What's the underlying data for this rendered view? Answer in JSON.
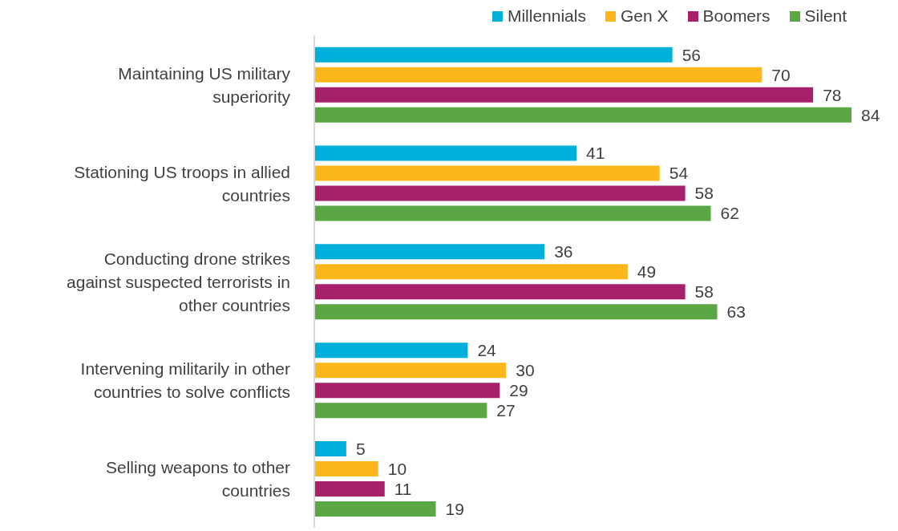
{
  "chart_data": {
    "type": "bar",
    "orientation": "horizontal",
    "data_labels": true,
    "legend": "top",
    "grid": false,
    "categories": [
      "Maintaining US military superiority",
      "Stationing US troops in allied countries",
      "Conducting drone strikes against suspected terrorists in other countries",
      "Intervening militarily in other countries to solve conflicts",
      "Selling weapons to other countries"
    ],
    "series": [
      {
        "name": "Millennials",
        "color": "#00b0db",
        "values": [
          56,
          41,
          36,
          24,
          5
        ]
      },
      {
        "name": "Gen X",
        "color": "#fdb71a",
        "values": [
          70,
          54,
          49,
          30,
          10
        ]
      },
      {
        "name": "Boomers",
        "color": "#a6216a",
        "values": [
          78,
          58,
          58,
          29,
          11
        ]
      },
      {
        "name": "Silent",
        "color": "#5aa744",
        "values": [
          84,
          62,
          63,
          27,
          19
        ]
      }
    ]
  }
}
